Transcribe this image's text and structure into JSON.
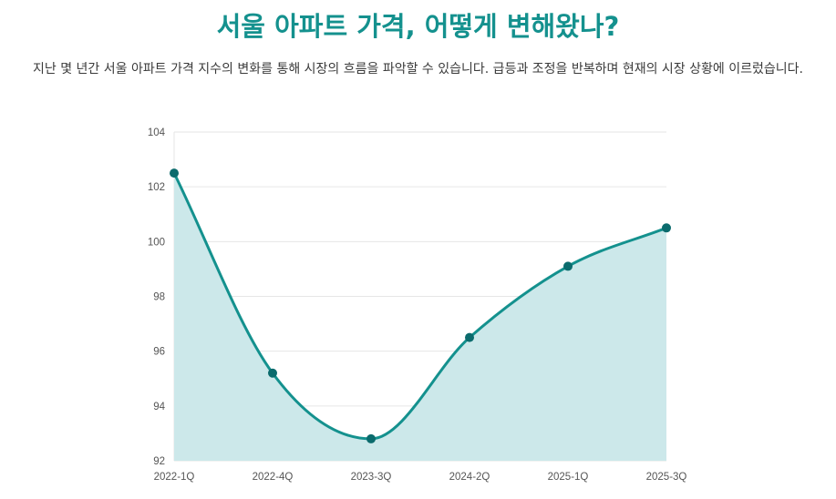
{
  "header": {
    "title": "서울 아파트 가격, 어떻게 변해왔나?",
    "subtitle": "지난 몇 년간 서울 아파트 가격 지수의 변화를 통해 시장의 흐름을 파악할 수 있습니다. 급등과 조정을 반복하며 현재의 시장 상황에 이르렀습니다."
  },
  "colors": {
    "title": "#14918e",
    "line": "#14918e",
    "area": "#cce8ea",
    "point": "#0b6b6d",
    "grid": "#e6e6e6"
  },
  "chart_data": {
    "type": "area",
    "categories": [
      "2022-1Q",
      "2022-4Q",
      "2023-3Q",
      "2024-2Q",
      "2025-1Q",
      "2025-3Q"
    ],
    "series": [
      {
        "values": [
          102.5,
          95.2,
          92.8,
          96.5,
          99.1,
          100.5
        ]
      }
    ],
    "ylim": [
      92,
      104
    ],
    "yticks": [
      92,
      94,
      96,
      98,
      100,
      102,
      104
    ],
    "grid": true,
    "legend": "none",
    "curve": "smooth"
  }
}
